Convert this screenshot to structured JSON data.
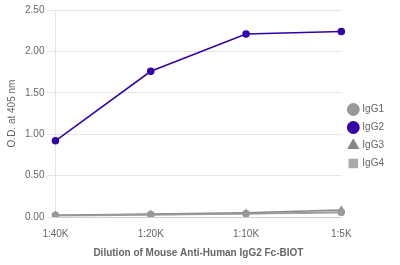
{
  "chart_data": {
    "type": "line",
    "categories": [
      "1:40K",
      "1:20K",
      "1:10K",
      "1:5K"
    ],
    "series": [
      {
        "name": "IgG1",
        "color": "#999999",
        "marker": "circle",
        "values": [
          0.02,
          0.03,
          0.04,
          0.06
        ]
      },
      {
        "name": "IgG2",
        "color": "#3300aa",
        "marker": "circle",
        "values": [
          0.92,
          1.76,
          2.21,
          2.24
        ]
      },
      {
        "name": "IgG3",
        "color": "#888888",
        "marker": "triangle",
        "values": [
          0.02,
          0.035,
          0.05,
          0.085
        ]
      },
      {
        "name": "IgG4",
        "color": "#aaaaaa",
        "marker": "square",
        "values": [
          0.015,
          0.025,
          0.04,
          0.05
        ]
      }
    ],
    "xlabel": "Dilution of Mouse Anti-Human IgG2 Fc-BIOT",
    "ylabel": "O.D. at 405 nm",
    "ylim": [
      0.0,
      2.5
    ],
    "yticks": [
      {
        "value": 0,
        "label": "0.00"
      },
      {
        "value": 0.5,
        "label": "0.50"
      },
      {
        "value": 1,
        "label": "1.00"
      },
      {
        "value": 1.5,
        "label": "1.50"
      },
      {
        "value": 2,
        "label": "2.00"
      },
      {
        "value": 2.5,
        "label": "2.50"
      }
    ],
    "grid": true,
    "legend": "right"
  }
}
